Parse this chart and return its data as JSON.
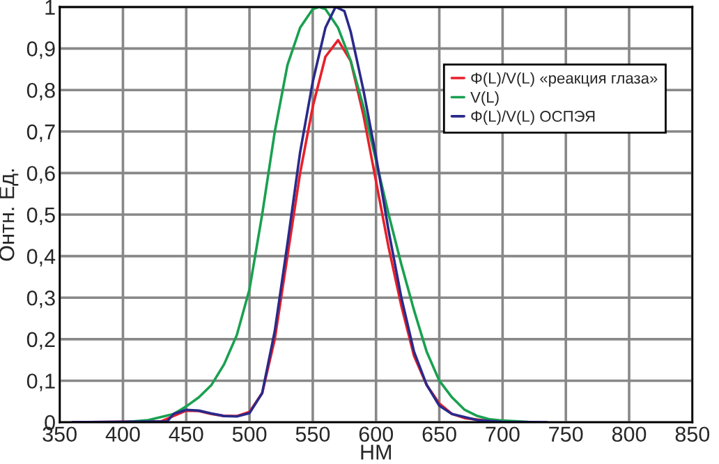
{
  "chart_data": {
    "type": "line",
    "xlabel": "НМ",
    "ylabel": "Онтн. Ед.",
    "xlim": [
      350,
      850
    ],
    "ylim": [
      0,
      1
    ],
    "xticks": [
      350,
      400,
      450,
      500,
      550,
      600,
      650,
      700,
      750,
      800,
      850
    ],
    "yticks": [
      0,
      {
        "value": 0.1,
        "label": "0,1"
      },
      {
        "value": 0.2,
        "label": "0,2"
      },
      {
        "value": 0.3,
        "label": "0,3"
      },
      {
        "value": 0.4,
        "label": "0,4"
      },
      {
        "value": 0.5,
        "label": "0,5"
      },
      {
        "value": 0.6,
        "label": "0,6"
      },
      {
        "value": 0.7,
        "label": "0,7"
      },
      {
        "value": 0.8,
        "label": "0,8"
      },
      {
        "value": 0.9,
        "label": "0,9"
      },
      1
    ],
    "grid": true,
    "legend": "top right",
    "marker": "none",
    "line_style": "solid",
    "series": [
      {
        "name": "Φ(L)/V(L) «реакция глаза»",
        "color": "#e8202a",
        "x": [
          360,
          430,
          440,
          450,
          460,
          470,
          480,
          490,
          500,
          510,
          520,
          530,
          540,
          550,
          560,
          570,
          580,
          590,
          600,
          610,
          620,
          630,
          640,
          650,
          660,
          670,
          690,
          710
        ],
        "values": [
          0,
          0.002,
          0.015,
          0.028,
          0.027,
          0.02,
          0.015,
          0.015,
          0.025,
          0.07,
          0.2,
          0.4,
          0.6,
          0.76,
          0.88,
          0.92,
          0.87,
          0.74,
          0.58,
          0.42,
          0.28,
          0.16,
          0.09,
          0.045,
          0.02,
          0.01,
          0.003,
          0
        ]
      },
      {
        "name": "V(L)",
        "color": "#1aa050",
        "x": [
          400,
          420,
          440,
          450,
          460,
          470,
          480,
          490,
          500,
          510,
          520,
          530,
          540,
          550,
          555,
          560,
          570,
          580,
          590,
          600,
          610,
          620,
          630,
          640,
          650,
          660,
          670,
          680,
          690,
          700,
          720
        ],
        "values": [
          0,
          0.005,
          0.02,
          0.038,
          0.06,
          0.09,
          0.14,
          0.21,
          0.32,
          0.5,
          0.7,
          0.86,
          0.95,
          0.995,
          1.0,
          0.995,
          0.95,
          0.87,
          0.76,
          0.63,
          0.5,
          0.38,
          0.27,
          0.17,
          0.1,
          0.06,
          0.03,
          0.015,
          0.007,
          0.004,
          0.001
        ]
      },
      {
        "name": "Φ(L)/V(L) ОСПЭЯ",
        "color": "#2a2a8a",
        "x": [
          360,
          435,
          440,
          450,
          460,
          470,
          480,
          490,
          500,
          510,
          520,
          530,
          540,
          550,
          560,
          568,
          575,
          580,
          590,
          600,
          610,
          620,
          630,
          640,
          650,
          660,
          680,
          700,
          735
        ],
        "values": [
          0,
          0.002,
          0.02,
          0.03,
          0.028,
          0.021,
          0.015,
          0.014,
          0.022,
          0.07,
          0.22,
          0.43,
          0.65,
          0.82,
          0.95,
          1.0,
          0.99,
          0.94,
          0.8,
          0.64,
          0.46,
          0.3,
          0.17,
          0.09,
          0.04,
          0.02,
          0.005,
          0.001,
          0
        ]
      }
    ]
  }
}
